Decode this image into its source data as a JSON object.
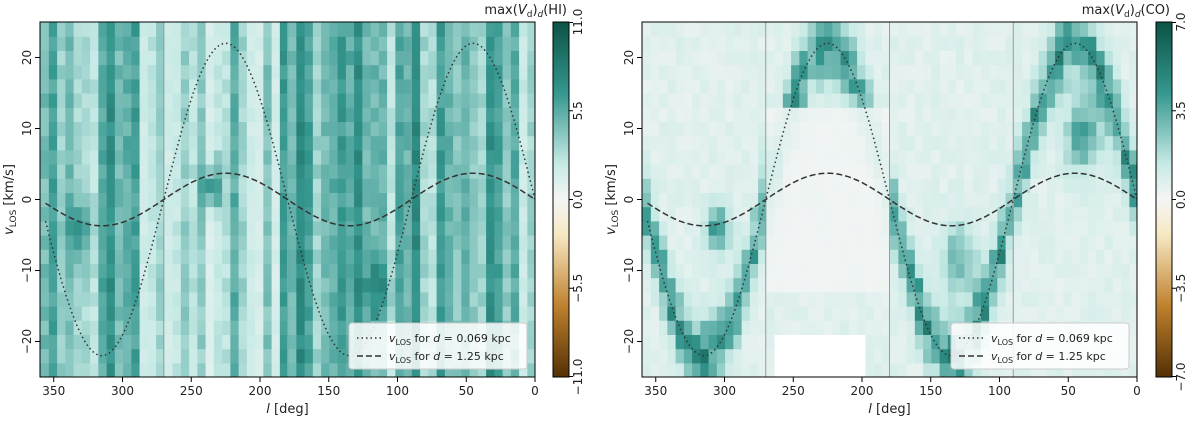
{
  "chart_data": [
    {
      "type": "heatmap",
      "colorbar_title": "max(V_d)_d(HI)",
      "xlabel": "l [deg]",
      "ylabel": "v_LOS [km/s]",
      "xlim": [
        360,
        0
      ],
      "ylim": [
        -25,
        25
      ],
      "x_ticks": [
        350,
        300,
        250,
        200,
        150,
        100,
        50,
        0
      ],
      "y_ticks": [
        -20,
        -10,
        0,
        10,
        20
      ],
      "colorbar_range": [
        -11,
        11
      ],
      "colorbar_ticks": [
        11.0,
        5.5,
        0.0,
        -5.5,
        -11.0
      ],
      "colorbar_tick_labels": [
        "11.0",
        "5.5",
        "0.0",
        "−5.5",
        "−11.0"
      ],
      "vertical_lines": [
        270,
        180,
        90
      ],
      "legend_position": "lower-right",
      "series": [
        {
          "name": "v_LOS for d = 0.069 kpc",
          "style": "dotted",
          "amplitude": 22.0,
          "distance_kpc": 0.069
        },
        {
          "name": "v_LOS for d = 1.25 kpc",
          "style": "dashed",
          "amplitude": 3.7,
          "distance_kpc": 1.25
        }
      ]
    },
    {
      "type": "heatmap",
      "colorbar_title": "max(V_d)_d(CO)",
      "xlabel": "l [deg]",
      "ylabel": "v_LOS [km/s]",
      "xlim": [
        360,
        0
      ],
      "ylim": [
        -25,
        25
      ],
      "x_ticks": [
        350,
        300,
        250,
        200,
        150,
        100,
        50,
        0
      ],
      "y_ticks": [
        -20,
        -10,
        0,
        10,
        20
      ],
      "colorbar_range": [
        -7,
        7
      ],
      "colorbar_ticks": [
        7.0,
        3.5,
        0.0,
        -3.5,
        -7.0
      ],
      "colorbar_tick_labels": [
        "7.0",
        "3.5",
        "0.0",
        "−3.5",
        "−7.0"
      ],
      "vertical_lines": [
        270,
        180,
        90
      ],
      "legend_position": "lower-right",
      "series": [
        {
          "name": "v_LOS for d = 0.069 kpc",
          "style": "dotted",
          "amplitude": 22.0,
          "distance_kpc": 0.069
        },
        {
          "name": "v_LOS for d = 1.25 kpc",
          "style": "dashed",
          "amplitude": 3.7,
          "distance_kpc": 1.25
        }
      ]
    }
  ],
  "colors": {
    "teal_dark": "#0b5345",
    "teal_mid": "#35978f",
    "teal_light": "#c7eae5",
    "neutral": "#f5f5f5",
    "brown_light": "#f6e8c3",
    "brown_mid": "#bf812d",
    "brown_dark": "#543005"
  }
}
